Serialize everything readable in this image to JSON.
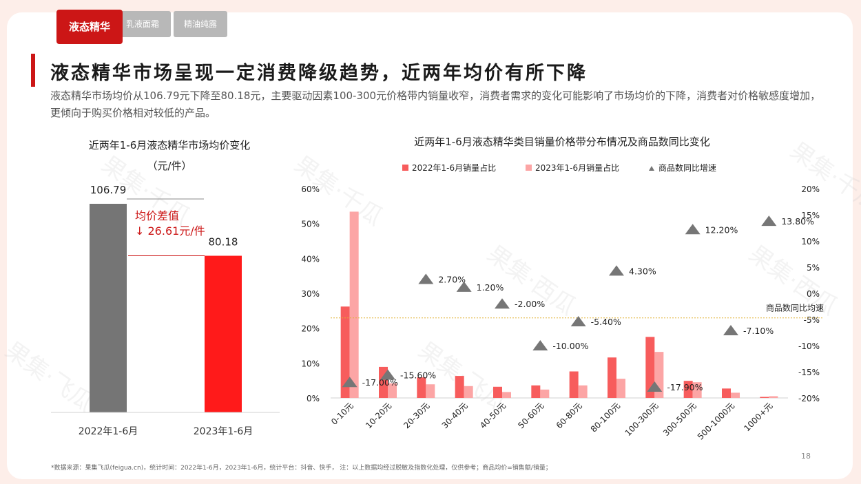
{
  "tabs": [
    {
      "label": "液态精华",
      "active": true
    },
    {
      "label": "乳液面霜",
      "active": false
    },
    {
      "label": "精油纯露",
      "active": false
    }
  ],
  "title": "液态精华市场呈现一定消费降级趋势，近两年均价有所下降",
  "description": "液态精华市场均价从106.79元下降至80.18元，主要驱动因素100-300元价格带内销量收窄，消费者需求的变化可能影响了市场均价的下降，消费者对价格敏感度增加，更倾向于购买价格相对较低的产品。",
  "footnote": "*数据来源：果集飞瓜(feigua.cn)，统计时间：2022年1-6月，2023年1-6月，统计平台：抖音、快手， 注：以上数据均经过脱敏及指数化处理，仅供参考；商品均价=销售额/销量；",
  "page_number": "18",
  "watermark": [
    "果集·千瓜",
    "果集·西瓜",
    "果集·飞瓜"
  ],
  "colors": {
    "accent": "#cc1616",
    "bar2022": "#f75c5c",
    "bar2023": "#fca5a5",
    "gray": "#757575",
    "red": "#ff1a1a",
    "triangle": "#767676",
    "avg_line": "#e0b030"
  },
  "chart_data": [
    {
      "type": "bar",
      "title": "近两年1-6月液态精华市场均价变化",
      "subtitle": "（元/件）",
      "categories": [
        "2022年1-6月",
        "2023年1-6月"
      ],
      "values": [
        106.79,
        80.18
      ],
      "value_labels": [
        "106.79",
        "80.18"
      ],
      "ylim": [
        0,
        110
      ],
      "annotation": {
        "line1": "均价差值",
        "line2": "↓ 26.61元/件"
      }
    },
    {
      "type": "bar",
      "title": "近两年1-6月液态精华类目销量价格带分布情况及商品数同比变化",
      "legend_position": "top",
      "categories": [
        "0-10元",
        "10-20元",
        "20-30元",
        "30-40元",
        "40-50元",
        "50-60元",
        "60-80元",
        "80-100元",
        "100-300元",
        "300-500元",
        "500-1000元",
        "1000+元"
      ],
      "series": [
        {
          "name": "2022年1-6月销量占比",
          "axis": "left",
          "values": [
            26.2,
            8.9,
            5.9,
            6.3,
            3.2,
            3.6,
            7.6,
            11.6,
            17.5,
            4.9,
            2.7,
            0.3
          ]
        },
        {
          "name": "2023年1-6月销量占比",
          "axis": "left",
          "values": [
            53.4,
            4.2,
            3.9,
            3.4,
            1.7,
            2.4,
            3.6,
            5.5,
            13.2,
            4.5,
            1.5,
            0.5
          ]
        },
        {
          "name": "商品数同比增速",
          "type": "scatter",
          "marker": "triangle",
          "axis": "right",
          "values": [
            -17.0,
            -15.6,
            2.7,
            1.2,
            -2.0,
            -10.0,
            -5.4,
            4.3,
            -17.9,
            12.2,
            -7.1,
            13.8
          ],
          "labels": [
            "-17.00%",
            "-15.60%",
            "2.70%",
            "1.20%",
            "-2.00%",
            "-10.00%",
            "-5.40%",
            "4.30%",
            "-17.90%",
            "12.20%",
            "-7.10%",
            "13.80%"
          ]
        }
      ],
      "left_axis": {
        "ylim": [
          0,
          60
        ],
        "ticks": [
          0,
          10,
          20,
          30,
          40,
          50,
          60
        ],
        "tick_labels": [
          "0%",
          "10%",
          "20%",
          "30%",
          "40%",
          "50%",
          "60%"
        ]
      },
      "right_axis": {
        "ylim": [
          -20,
          20
        ],
        "ticks": [
          -20,
          -15,
          -10,
          -5,
          0,
          5,
          10,
          15,
          20
        ],
        "tick_labels": [
          "-20%",
          "-15%",
          "-10%",
          "-5%",
          "0%",
          "5%",
          "10%",
          "15%",
          "20%"
        ]
      },
      "reference_line": {
        "label": "商品数同比均速",
        "value": -4.7
      }
    }
  ]
}
